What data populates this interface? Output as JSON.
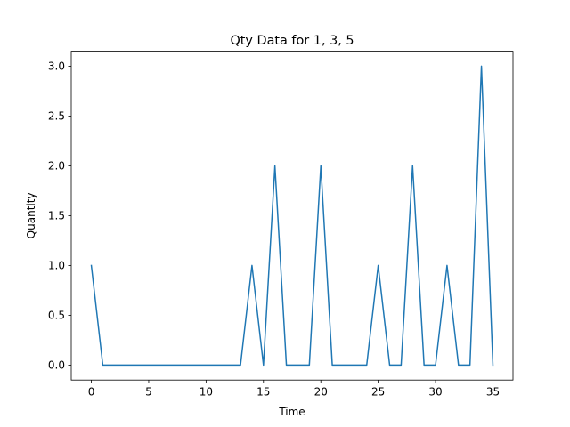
{
  "chart_data": {
    "type": "line",
    "title": "Qty Data for 1, 3, 5",
    "xlabel": "Time",
    "ylabel": "Quantity",
    "xlim": [
      -1.75,
      36.75
    ],
    "ylim": [
      -0.15,
      3.15
    ],
    "x_ticks": [
      0,
      5,
      10,
      15,
      20,
      25,
      30,
      35
    ],
    "y_ticks": [
      0.0,
      0.5,
      1.0,
      1.5,
      2.0,
      2.5,
      3.0
    ],
    "x_tick_labels": [
      "0",
      "5",
      "10",
      "15",
      "20",
      "25",
      "30",
      "35"
    ],
    "y_tick_labels": [
      "0.0",
      "0.5",
      "1.0",
      "1.5",
      "2.0",
      "2.5",
      "3.0"
    ],
    "grid": false,
    "series": [
      {
        "color": "#1f77b4",
        "x": [
          0,
          1,
          2,
          3,
          4,
          5,
          6,
          7,
          8,
          9,
          10,
          11,
          12,
          13,
          14,
          15,
          16,
          17,
          18,
          19,
          20,
          21,
          22,
          23,
          24,
          25,
          26,
          27,
          28,
          29,
          30,
          31,
          32,
          33,
          34,
          35
        ],
        "values": [
          1,
          0,
          0,
          0,
          0,
          0,
          0,
          0,
          0,
          0,
          0,
          0,
          0,
          0,
          1,
          0,
          2,
          0,
          0,
          0,
          2,
          0,
          0,
          0,
          0,
          1,
          0,
          0,
          2,
          0,
          0,
          1,
          0,
          0,
          3,
          0
        ]
      }
    ]
  }
}
